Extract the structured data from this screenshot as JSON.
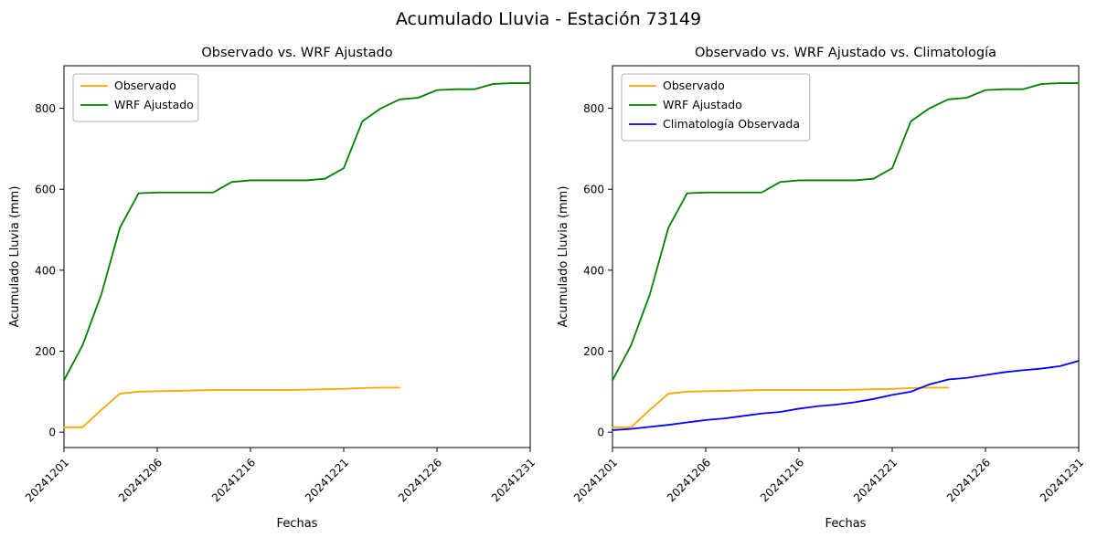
{
  "figure_title": "Acumulado Lluvia - Estación 73149",
  "chart_data": [
    {
      "type": "line",
      "title": "Observado vs. WRF Ajustado",
      "xlabel": "Fechas",
      "ylabel": "Acumulado Lluvia (mm)",
      "ylim": [
        -38,
        905
      ],
      "yticks": [
        0,
        200,
        400,
        600,
        800
      ],
      "grid": false,
      "legend_position": "upper left",
      "x_index_count": 26,
      "x_tick_indices": [
        0,
        5,
        10,
        15,
        20,
        25
      ],
      "x_tick_labels": [
        "20241201",
        "20241206",
        "20241216",
        "20241221",
        "20241226",
        "20241231"
      ],
      "series": [
        {
          "name": "Observado",
          "color": "#FFA500",
          "start_index": 0,
          "values": [
            12,
            12,
            55,
            95,
            100,
            101,
            102,
            103,
            104,
            104,
            104,
            104,
            104,
            105,
            106,
            107,
            109,
            110,
            110
          ]
        },
        {
          "name": "WRF Ajustado",
          "color": "#008000",
          "start_index": 0,
          "values": [
            128,
            215,
            340,
            505,
            590,
            592,
            592,
            592,
            592,
            618,
            622,
            622,
            622,
            622,
            626,
            652,
            768,
            800,
            822,
            826,
            845,
            847,
            847,
            860,
            862,
            862
          ]
        }
      ]
    },
    {
      "type": "line",
      "title": "Observado vs. WRF Ajustado vs. Climatología",
      "xlabel": "Fechas",
      "ylabel": "Acumulado Lluvia (mm)",
      "ylim": [
        -38,
        905
      ],
      "yticks": [
        0,
        200,
        400,
        600,
        800
      ],
      "grid": false,
      "legend_position": "upper left",
      "x_index_count": 26,
      "x_tick_indices": [
        0,
        5,
        10,
        15,
        20,
        25
      ],
      "x_tick_labels": [
        "20241201",
        "20241206",
        "20241216",
        "20241221",
        "20241226",
        "20241231"
      ],
      "series": [
        {
          "name": "Observado",
          "color": "#FFA500",
          "start_index": 0,
          "values": [
            12,
            12,
            55,
            95,
            100,
            101,
            102,
            103,
            104,
            104,
            104,
            104,
            104,
            105,
            106,
            107,
            109,
            110,
            110
          ]
        },
        {
          "name": "WRF Ajustado",
          "color": "#008000",
          "start_index": 0,
          "values": [
            128,
            215,
            340,
            505,
            590,
            592,
            592,
            592,
            592,
            618,
            622,
            622,
            622,
            622,
            626,
            652,
            768,
            800,
            822,
            826,
            845,
            847,
            847,
            860,
            862,
            862
          ]
        },
        {
          "name": "Climatología Observada",
          "color": "#0000FF",
          "start_index": 0,
          "values": [
            5,
            8,
            13,
            18,
            24,
            30,
            34,
            40,
            46,
            50,
            58,
            64,
            68,
            74,
            82,
            92,
            100,
            118,
            130,
            134,
            141,
            148,
            153,
            157,
            163,
            176
          ]
        }
      ]
    }
  ]
}
